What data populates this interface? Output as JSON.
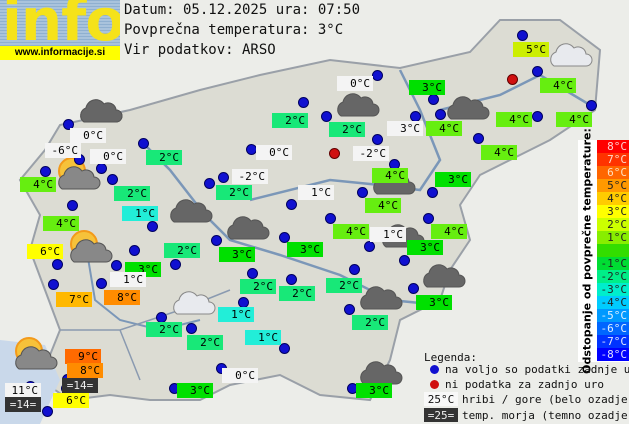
{
  "header": {
    "logo_word": "info",
    "logo_url": "www.informacije.si",
    "date_line": "Datum: 05.12.2025 ura: 07:50",
    "avg_line": "Povprečna temperatura: 3°C",
    "source_line": "Vir podatkov: ARSO"
  },
  "colors": {
    "t1": "#22eed8",
    "t2": "#18e878",
    "t3": "#00e000",
    "t4": "#66ee10",
    "t5": "#ccee00",
    "t6": "#ffff00",
    "t7": "#ffb800",
    "t8": "#ff8c00",
    "t9": "#ff6a00",
    "mountain": "#f4f4f4",
    "sea": "#333333",
    "station_ok": "#1010d0",
    "station_missing": "#d01010"
  },
  "stations": [
    {
      "t": "0°C",
      "k": "mountain"
    },
    {
      "t": "-6°C",
      "k": "mountain"
    },
    {
      "t": "0°C",
      "k": "mountain"
    },
    {
      "t": "4°C",
      "k": "t4"
    },
    {
      "t": "2°C",
      "k": "t2"
    },
    {
      "t": "2°C",
      "k": "t2"
    },
    {
      "t": "1°C",
      "k": "t1"
    },
    {
      "t": "4°C",
      "k": "t4"
    },
    {
      "t": "6°C",
      "k": "t6"
    },
    {
      "t": "3°C",
      "k": "t3"
    },
    {
      "t": "1°C",
      "k": "mountain"
    },
    {
      "t": "7°C",
      "k": "t7"
    },
    {
      "t": "8°C",
      "k": "t8"
    },
    {
      "t": "0°C",
      "k": "mountain"
    },
    {
      "t": "-2°C",
      "k": "mountain"
    },
    {
      "t": "2°C",
      "k": "t2"
    },
    {
      "t": "2°C",
      "k": "t2"
    },
    {
      "t": "2°C",
      "k": "t2"
    },
    {
      "t": "0°C",
      "k": "mountain"
    },
    {
      "t": "3°C",
      "k": "mountain"
    },
    {
      "t": "-2°C",
      "k": "mountain"
    },
    {
      "t": "3°C",
      "k": "t3"
    },
    {
      "t": "4°C",
      "k": "t4"
    },
    {
      "t": "5°C",
      "k": "t5"
    },
    {
      "t": "4°C",
      "k": "t4"
    },
    {
      "t": "4°C",
      "k": "t4"
    },
    {
      "t": "4°C",
      "k": "t4"
    },
    {
      "t": "4°C",
      "k": "t4"
    },
    {
      "t": "3°C",
      "k": "t3"
    },
    {
      "t": "4°C",
      "k": "t4"
    },
    {
      "t": "1°C",
      "k": "mountain"
    },
    {
      "t": "4°C",
      "k": "t4"
    },
    {
      "t": "4°C",
      "k": "t4"
    },
    {
      "t": "1°C",
      "k": "mountain"
    },
    {
      "t": "4°C",
      "k": "t4"
    },
    {
      "t": "3°C",
      "k": "t3"
    },
    {
      "t": "3°C",
      "k": "t3"
    },
    {
      "t": "2°C",
      "k": "t2"
    },
    {
      "t": "3°C",
      "k": "t3"
    },
    {
      "t": "2°C",
      "k": "t2"
    },
    {
      "t": "2°C",
      "k": "t2"
    },
    {
      "t": "2°C",
      "k": "t2"
    },
    {
      "t": "3°C",
      "k": "t3"
    },
    {
      "t": "1°C",
      "k": "t1"
    },
    {
      "t": "2°C",
      "k": "t2"
    },
    {
      "t": "2°C",
      "k": "t2"
    },
    {
      "t": "1°C",
      "k": "t1"
    },
    {
      "t": "2°C",
      "k": "t2"
    },
    {
      "t": "9°C",
      "k": "t9"
    },
    {
      "t": "8°C",
      "k": "t8"
    },
    {
      "t": "=14=",
      "k": "sea"
    },
    {
      "t": "11°C",
      "k": "mountain"
    },
    {
      "t": "=14=",
      "k": "sea"
    },
    {
      "t": "6°C",
      "k": "t6"
    },
    {
      "t": "0°C",
      "k": "mountain"
    },
    {
      "t": "3°C",
      "k": "t3"
    },
    {
      "t": "3°C",
      "k": "t3"
    }
  ],
  "weather_icons": [
    "cloudy",
    "cloudy",
    "cloudy",
    "overcast-light",
    "partly-sunny",
    "overcast",
    "overcast",
    "partly-sunny",
    "rain-light",
    "overcast",
    "overcast",
    "overcast",
    "overcast",
    "partly-sunny",
    "overcast",
    "overcast"
  ],
  "scale": {
    "title": "Odstopanje od povprečne temperature:",
    "items": [
      {
        "label": "8°C",
        "color": "#ff0000",
        "fg": "#ffd0d0"
      },
      {
        "label": "7°C",
        "color": "#ff3300",
        "fg": "#ffd8c8"
      },
      {
        "label": "6°C",
        "color": "#ff6600",
        "fg": "#ffe0c0"
      },
      {
        "label": "5°C",
        "color": "#ff9900",
        "fg": "#222"
      },
      {
        "label": "4°C",
        "color": "#ffcc00",
        "fg": "#222"
      },
      {
        "label": "3°C",
        "color": "#ffff00",
        "fg": "#222"
      },
      {
        "label": "2°C",
        "color": "#ccff00",
        "fg": "#222"
      },
      {
        "label": "1°C",
        "color": "#88ee00",
        "fg": "#222"
      },
      {
        "label": "",
        "color": "#33dd00",
        "fg": "#222"
      },
      {
        "label": "-1°C",
        "color": "#00dd33",
        "fg": "#222"
      },
      {
        "label": "-2°C",
        "color": "#00ee88",
        "fg": "#222"
      },
      {
        "label": "-3°C",
        "color": "#00eecc",
        "fg": "#222"
      },
      {
        "label": "-4°C",
        "color": "#00ccff",
        "fg": "#222"
      },
      {
        "label": "-5°C",
        "color": "#0099ff",
        "fg": "#e0f0ff"
      },
      {
        "label": "-6°C",
        "color": "#0066ff",
        "fg": "#e0f0ff"
      },
      {
        "label": "-7°C",
        "color": "#0033ff",
        "fg": "#e0e8ff"
      },
      {
        "label": "-8°C",
        "color": "#0000ff",
        "fg": "#e0e0ff"
      }
    ]
  },
  "legend": {
    "title": "Legenda:",
    "ok": "na voljo so podatki zadnje ure",
    "missing": "ni podatka za zadnjo uro",
    "mountain_sample": "25°C",
    "mountain": "hribi / gore (belo ozadje)",
    "sea_sample": "=25=",
    "sea": "temp. morja (temno ozadje)"
  }
}
